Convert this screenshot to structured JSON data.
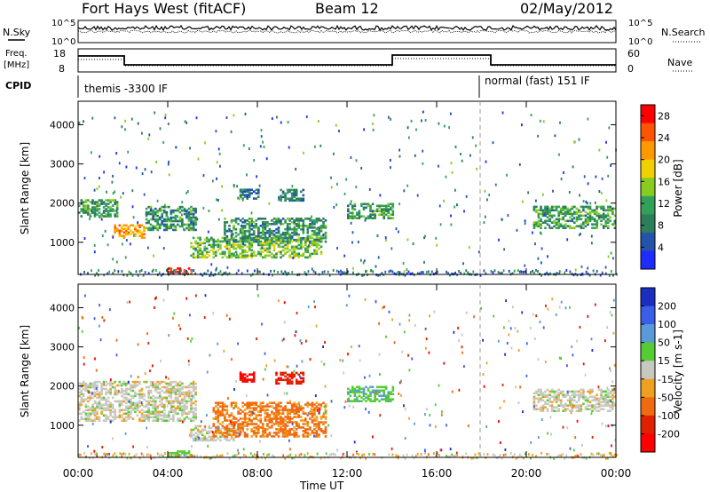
{
  "header": {
    "station": "Fort Hays West (fitACF)",
    "beam": "Beam 12",
    "date": "02/May/2012"
  },
  "status_panels": {
    "nsky_label": "N.Sky",
    "nsearch_label": "N.Search",
    "freq_label_1": "Freq.",
    "freq_label_2": "[MHz]",
    "nave_label": "Nave",
    "cpid_label": "CPID",
    "noise_ticks": [
      "10^5",
      "10^0"
    ],
    "freq_ticks": [
      "18",
      "8"
    ],
    "nave_ticks": [
      "60",
      "0"
    ],
    "cpid_segments": [
      "themis -3300 IF",
      "normal (fast) 151 IF"
    ]
  },
  "colors": {
    "power": [
      "#1e2cff",
      "#2255aa",
      "#2c7f5a",
      "#33a05a",
      "#88cc22",
      "#f0d000",
      "#ff9900",
      "#ff5500",
      "#ff0000"
    ],
    "velocity": [
      "#1a2fc0",
      "#3a5ee8",
      "#5a9ad8",
      "#55cc33",
      "#c8c8c0",
      "#f0a020",
      "#f06a10",
      "#e02000",
      "#ff0000"
    ]
  },
  "chart_data": [
    {
      "type": "heatmap",
      "title": "Power",
      "xlabel": "",
      "ylabel": "Slant Range [km]",
      "x_ticks": [
        "00:00",
        "04:00",
        "08:00",
        "12:00",
        "16:00",
        "20:00",
        "00:00"
      ],
      "y_ticks": [
        "1000",
        "2000",
        "3000",
        "4000"
      ],
      "y_range_km": [
        180,
        4600
      ],
      "colorbar": {
        "label": "Power [dB]",
        "ticks": [
          "4",
          "8",
          "12",
          "16",
          "20",
          "24",
          "28"
        ],
        "range": [
          0,
          30
        ]
      },
      "cpid_change_hour": 18.2,
      "bands": [
        {
          "t0": 0.0,
          "t1": 1.8,
          "r0": 1650,
          "r1": 2100,
          "level": 0.35
        },
        {
          "t0": 1.5,
          "t1": 3.0,
          "r0": 1100,
          "r1": 1450,
          "level": 0.75
        },
        {
          "t0": 3.0,
          "t1": 5.2,
          "r0": 1300,
          "r1": 1900,
          "level": 0.3
        },
        {
          "t0": 5.0,
          "t1": 10.8,
          "r0": 600,
          "r1": 1100,
          "level": 0.45
        },
        {
          "t0": 6.5,
          "t1": 11.0,
          "r0": 1000,
          "r1": 1600,
          "level": 0.3
        },
        {
          "t0": 7.2,
          "t1": 8.0,
          "r0": 2100,
          "r1": 2350,
          "level": 0.2
        },
        {
          "t0": 9.0,
          "t1": 10.0,
          "r0": 2050,
          "r1": 2350,
          "level": 0.25
        },
        {
          "t0": 12.0,
          "t1": 14.0,
          "r0": 1600,
          "r1": 2000,
          "level": 0.35
        },
        {
          "t0": 20.3,
          "t1": 24.0,
          "r0": 1350,
          "r1": 1900,
          "level": 0.35
        },
        {
          "t0": 4.0,
          "t1": 5.0,
          "r0": 180,
          "r1": 320,
          "level": 0.98
        }
      ]
    },
    {
      "type": "heatmap",
      "title": "Velocity",
      "xlabel": "Time UT",
      "ylabel": "Slant Range [km]",
      "x_ticks": [
        "00:00",
        "04:00",
        "08:00",
        "12:00",
        "16:00",
        "20:00",
        "00:00"
      ],
      "y_ticks": [
        "1000",
        "2000",
        "3000",
        "4000"
      ],
      "y_range_km": [
        180,
        4600
      ],
      "colorbar": {
        "label": "Velocity [m s-1]",
        "ticks": [
          "200",
          "100",
          "50",
          "15",
          "-15",
          "-50",
          "-100",
          "-200"
        ],
        "range": [
          -250,
          250
        ]
      },
      "cpid_change_hour": 18.2,
      "bands": [
        {
          "t0": 0.0,
          "t1": 5.2,
          "r0": 1100,
          "r1": 2100,
          "level": 0.0
        },
        {
          "t0": 5.0,
          "t1": 7.0,
          "r0": 600,
          "r1": 1000,
          "level": 0.0
        },
        {
          "t0": 6.0,
          "t1": 11.0,
          "r0": 700,
          "r1": 1600,
          "level": -0.45
        },
        {
          "t0": 7.2,
          "t1": 7.8,
          "r0": 2100,
          "r1": 2350,
          "level": -0.95
        },
        {
          "t0": 8.8,
          "t1": 10.0,
          "r0": 2050,
          "r1": 2350,
          "level": -0.8
        },
        {
          "t0": 12.0,
          "t1": 14.0,
          "r0": 1600,
          "r1": 2000,
          "level": 0.3
        },
        {
          "t0": 20.3,
          "t1": 24.0,
          "r0": 1350,
          "r1": 1900,
          "level": 0.0
        },
        {
          "t0": 4.0,
          "t1": 5.0,
          "r0": 180,
          "r1": 320,
          "level": 0.3
        }
      ]
    }
  ]
}
